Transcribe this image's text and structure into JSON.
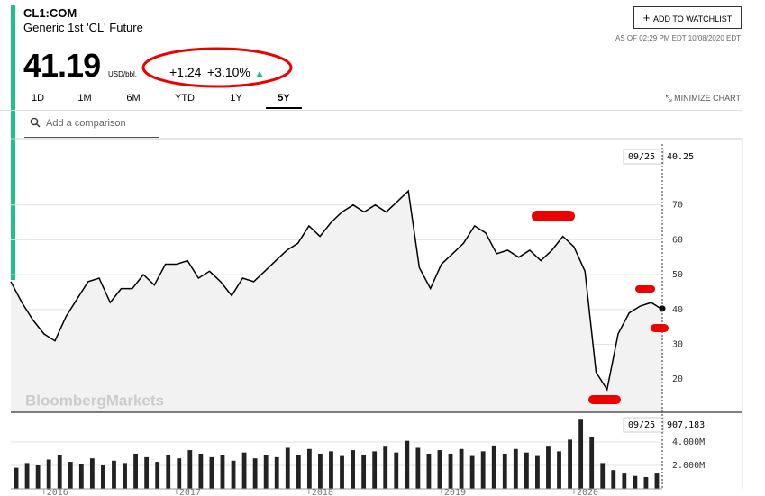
{
  "header": {
    "symbol": "CL1:COM",
    "name": "Generic 1st 'CL' Future",
    "price": "41.19",
    "unit": "USD/bbl.",
    "change": "+1.24",
    "change_percent": "+3.10%",
    "watchlist": "ADD TO WATCHLIST",
    "timestamp": "AS OF 02:29 PM EDT 10/08/2020 EDT"
  },
  "ranges": [
    "1D",
    "1M",
    "6M",
    "YTD",
    "1Y",
    "5Y"
  ],
  "minimize": "MINIMIZE CHART",
  "comparison_placeholder": "Add a comparison",
  "watermark": "BloombergMarkets",
  "chart_data": [
    {
      "type": "line",
      "color": "#000000",
      "categories": [
        null,
        null,
        null,
        "2016",
        null,
        null,
        null,
        null,
        null,
        null,
        null,
        null,
        null,
        null,
        null,
        "2017",
        null,
        null,
        null,
        null,
        null,
        null,
        null,
        null,
        null,
        null,
        null,
        "2018",
        null,
        null,
        null,
        null,
        null,
        null,
        null,
        null,
        null,
        null,
        null,
        "2019",
        null,
        null,
        null,
        null,
        null,
        null,
        null,
        null,
        null,
        null,
        null,
        "2020",
        null,
        null,
        null,
        null,
        null,
        null,
        null,
        null
      ],
      "values": [
        48,
        42,
        37,
        33,
        31,
        38,
        43,
        48,
        49,
        42,
        46,
        46,
        50,
        47,
        53,
        53,
        54,
        49,
        51,
        48,
        44,
        49,
        48,
        51,
        54,
        57,
        59,
        64,
        61,
        65,
        68,
        70,
        68,
        70,
        68,
        71,
        74,
        52,
        46,
        53,
        56,
        59,
        64,
        62,
        56,
        57,
        55,
        57,
        54,
        57,
        61,
        58,
        51,
        22,
        17,
        33,
        39,
        41,
        42,
        40
      ],
      "ylim": [
        10.5,
        87.5
      ],
      "yticks": [
        20,
        30,
        40,
        50,
        60,
        70
      ],
      "cursor": {
        "label": "09/25",
        "value": 40.25
      }
    },
    {
      "type": "bar",
      "color": "#222222",
      "values": [
        1800000,
        2200000,
        2000000,
        2500000,
        2900000,
        2300000,
        2100000,
        2600000,
        2000000,
        2400000,
        2200000,
        3000000,
        2700000,
        2300000,
        2900000,
        2600000,
        3300000,
        3000000,
        2700000,
        2900000,
        2400000,
        3100000,
        2600000,
        2900000,
        2700000,
        3500000,
        2900000,
        3400000,
        3000000,
        3200000,
        2800000,
        3300000,
        2900000,
        3200000,
        3600000,
        3100000,
        4100000,
        3500000,
        3000000,
        3300000,
        3000000,
        3400000,
        2800000,
        3200000,
        3700000,
        3000000,
        3400000,
        3100000,
        2800000,
        3600000,
        3200000,
        4200000,
        5900000,
        4400000,
        2200000,
        1600000,
        1300000,
        1100000,
        1000000,
        1300000
      ],
      "ylim": [
        0,
        6380000
      ],
      "yticks": [
        {
          "value": 2000000,
          "label": "2.000M"
        },
        {
          "value": 4000000,
          "label": "4.000M"
        }
      ],
      "cursor": {
        "label": "09/25",
        "value": {
          "value": 907183,
          "label": "907,183"
        }
      }
    }
  ]
}
